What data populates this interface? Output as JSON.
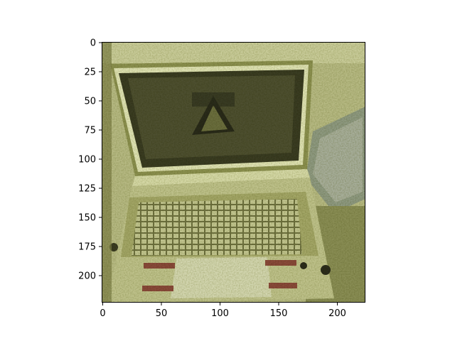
{
  "figure": {
    "image": {
      "description_icon": "laptop-photo",
      "palette": {
        "background_light": "#c9cc9a",
        "mid_olive": "#9aa05a",
        "dark_olive": "#3a3c22",
        "highlight": "#e8ebc0",
        "screen_dark": "#2c2d1c",
        "red_accent": "#8a4a3a"
      }
    },
    "axes": {
      "x_ticks": [
        "0",
        "50",
        "100",
        "150",
        "200"
      ],
      "y_ticks": [
        "0",
        "25",
        "50",
        "75",
        "100",
        "125",
        "150",
        "175",
        "200"
      ],
      "xlim": [
        0,
        224
      ],
      "ylim": [
        224,
        0
      ]
    }
  }
}
